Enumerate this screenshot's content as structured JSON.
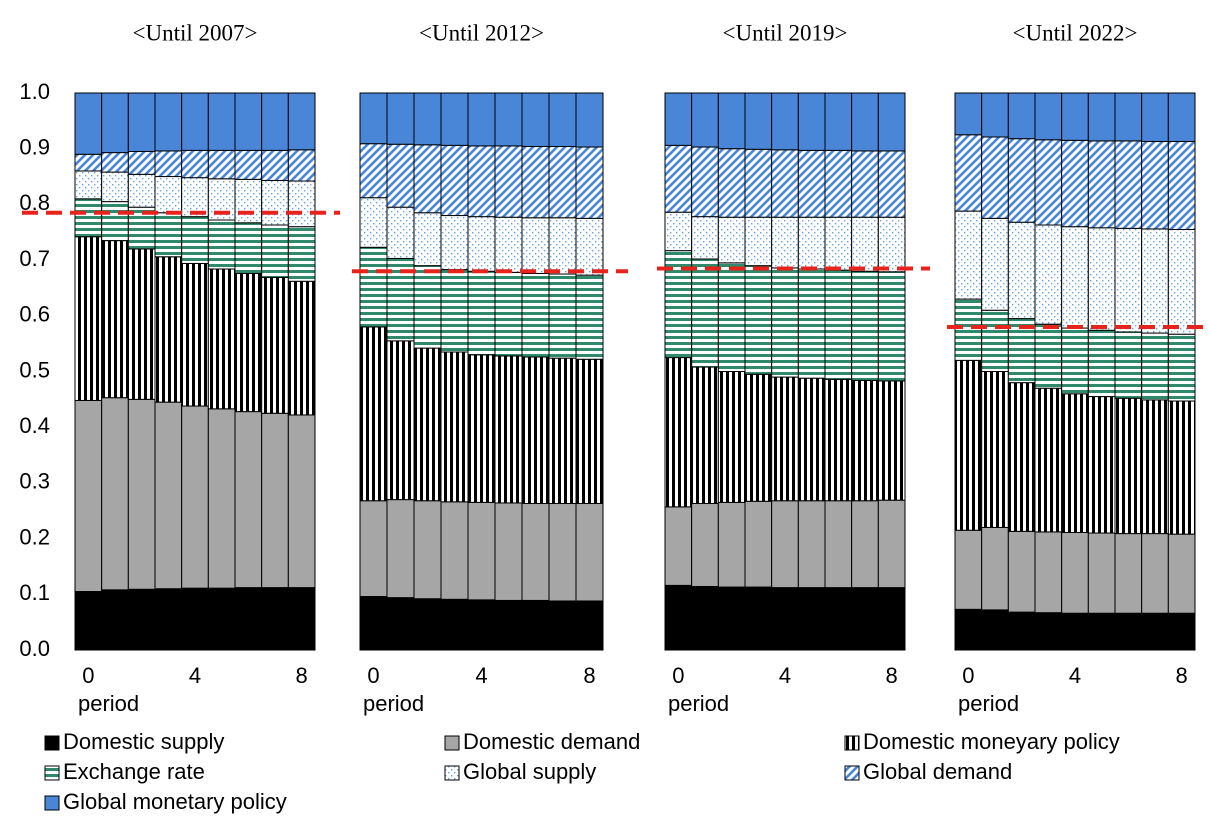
{
  "chart_data": [
    {
      "type": "stacked_bar",
      "title": "<Until 2007>",
      "xlabel": "period",
      "x": [
        0,
        1,
        2,
        3,
        4,
        5,
        6,
        7,
        8
      ],
      "xticks": [
        0,
        4,
        8
      ],
      "ylim": [
        0,
        1
      ],
      "yticks": [
        {
          "value": 0,
          "label": "0.0"
        },
        {
          "value": 0.1,
          "label": "0.1"
        },
        {
          "value": 0.2,
          "label": "0.2"
        },
        {
          "value": 0.3,
          "label": "0.3"
        },
        {
          "value": 0.4,
          "label": "0.4"
        },
        {
          "value": 0.5,
          "label": "0.5"
        },
        {
          "value": 0.6,
          "label": "0.6"
        },
        {
          "value": 0.7,
          "label": "0.7"
        },
        {
          "value": 0.8,
          "label": "0.8"
        },
        {
          "value": 0.9,
          "label": "0.9"
        },
        {
          "value": 1,
          "label": "1.0"
        }
      ],
      "reference_line": 0.785,
      "series": [
        {
          "values": [
            0.105,
            0.108,
            0.109,
            0.11,
            0.111,
            0.111,
            0.112,
            0.112,
            0.112
          ]
        },
        {
          "values": [
            0.343,
            0.345,
            0.341,
            0.335,
            0.327,
            0.322,
            0.316,
            0.313,
            0.31
          ]
        },
        {
          "values": [
            0.294,
            0.282,
            0.27,
            0.261,
            0.256,
            0.251,
            0.248,
            0.244,
            0.24
          ]
        },
        {
          "values": [
            0.068,
            0.07,
            0.075,
            0.079,
            0.084,
            0.088,
            0.091,
            0.094,
            0.098
          ]
        },
        {
          "values": [
            0.05,
            0.053,
            0.059,
            0.065,
            0.07,
            0.074,
            0.078,
            0.08,
            0.082
          ]
        },
        {
          "values": [
            0.03,
            0.035,
            0.041,
            0.046,
            0.049,
            0.051,
            0.052,
            0.054,
            0.056
          ]
        },
        {
          "values": [
            0.11,
            0.107,
            0.105,
            0.104,
            0.103,
            0.103,
            0.103,
            0.103,
            0.102
          ]
        }
      ]
    },
    {
      "type": "stacked_bar",
      "title": "<Until 2012>",
      "xlabel": "period",
      "x": [
        0,
        1,
        2,
        3,
        4,
        5,
        6,
        7,
        8
      ],
      "xticks": [
        0,
        4,
        8
      ],
      "reference_line": 0.68,
      "series": [
        {
          "values": [
            0.096,
            0.094,
            0.092,
            0.091,
            0.09,
            0.089,
            0.089,
            0.088,
            0.088
          ]
        },
        {
          "values": [
            0.172,
            0.176,
            0.176,
            0.175,
            0.175,
            0.175,
            0.174,
            0.175,
            0.175
          ]
        },
        {
          "values": [
            0.312,
            0.285,
            0.274,
            0.269,
            0.265,
            0.264,
            0.263,
            0.261,
            0.259
          ]
        },
        {
          "values": [
            0.143,
            0.148,
            0.148,
            0.148,
            0.15,
            0.15,
            0.15,
            0.151,
            0.151
          ]
        },
        {
          "values": [
            0.089,
            0.092,
            0.095,
            0.097,
            0.098,
            0.099,
            0.1,
            0.101,
            0.102
          ]
        },
        {
          "values": [
            0.097,
            0.113,
            0.122,
            0.126,
            0.127,
            0.128,
            0.128,
            0.128,
            0.128
          ]
        },
        {
          "values": [
            0.091,
            0.092,
            0.093,
            0.094,
            0.095,
            0.095,
            0.096,
            0.096,
            0.097
          ]
        }
      ]
    },
    {
      "type": "stacked_bar",
      "title": "<Until 2019>",
      "xlabel": "period",
      "x": [
        0,
        1,
        2,
        3,
        4,
        5,
        6,
        7,
        8
      ],
      "xticks": [
        0,
        4,
        8
      ],
      "reference_line": 0.685,
      "series": [
        {
          "values": [
            0.116,
            0.114,
            0.113,
            0.113,
            0.112,
            0.112,
            0.112,
            0.112,
            0.112
          ]
        },
        {
          "values": [
            0.141,
            0.149,
            0.152,
            0.154,
            0.156,
            0.156,
            0.156,
            0.156,
            0.157
          ]
        },
        {
          "values": [
            0.268,
            0.245,
            0.235,
            0.228,
            0.222,
            0.22,
            0.218,
            0.216,
            0.214
          ]
        },
        {
          "values": [
            0.192,
            0.194,
            0.195,
            0.195,
            0.196,
            0.196,
            0.196,
            0.196,
            0.196
          ]
        },
        {
          "values": [
            0.069,
            0.076,
            0.082,
            0.087,
            0.091,
            0.093,
            0.095,
            0.097,
            0.098
          ]
        },
        {
          "values": [
            0.12,
            0.125,
            0.123,
            0.122,
            0.121,
            0.12,
            0.12,
            0.119,
            0.119
          ]
        },
        {
          "values": [
            0.094,
            0.097,
            0.1,
            0.101,
            0.102,
            0.103,
            0.103,
            0.104,
            0.104
          ]
        }
      ]
    },
    {
      "type": "stacked_bar",
      "title": "<Until 2022>",
      "xlabel": "period",
      "x": [
        0,
        1,
        2,
        3,
        4,
        5,
        6,
        7,
        8
      ],
      "xticks": [
        0,
        4,
        8
      ],
      "reference_line": 0.58,
      "series": [
        {
          "values": [
            0.073,
            0.072,
            0.068,
            0.067,
            0.066,
            0.066,
            0.066,
            0.066,
            0.066
          ]
        },
        {
          "values": [
            0.142,
            0.148,
            0.145,
            0.145,
            0.145,
            0.144,
            0.143,
            0.143,
            0.142
          ]
        },
        {
          "values": [
            0.305,
            0.28,
            0.267,
            0.258,
            0.249,
            0.245,
            0.243,
            0.24,
            0.239
          ]
        },
        {
          "values": [
            0.11,
            0.11,
            0.115,
            0.115,
            0.118,
            0.119,
            0.119,
            0.12,
            0.12
          ]
        },
        {
          "values": [
            0.158,
            0.165,
            0.173,
            0.178,
            0.182,
            0.184,
            0.186,
            0.187,
            0.188
          ]
        },
        {
          "values": [
            0.137,
            0.146,
            0.15,
            0.153,
            0.155,
            0.156,
            0.157,
            0.157,
            0.158
          ]
        },
        {
          "values": [
            0.075,
            0.079,
            0.082,
            0.084,
            0.085,
            0.086,
            0.086,
            0.087,
            0.087
          ]
        }
      ]
    }
  ],
  "legend": [
    {
      "name": "Domestic supply",
      "color": "#000000",
      "pattern": "solid"
    },
    {
      "name": "Domestic demand",
      "color": "#a6a6a6",
      "pattern": "solid"
    },
    {
      "name": "Domestic moneyary policy",
      "color": "#000000",
      "pattern": "vertical"
    },
    {
      "name": "Exchange rate",
      "color": "#2e8a6a",
      "pattern": "horizontal"
    },
    {
      "name": "Global supply",
      "color": "#6a9fe0",
      "pattern": "dots"
    },
    {
      "name": "Global demand",
      "color": "#4a86d8",
      "pattern": "diagonal"
    },
    {
      "name": "Global monetary policy",
      "color": "#4a86d8",
      "pattern": "solid"
    }
  ],
  "reference_color": "#e8231b"
}
